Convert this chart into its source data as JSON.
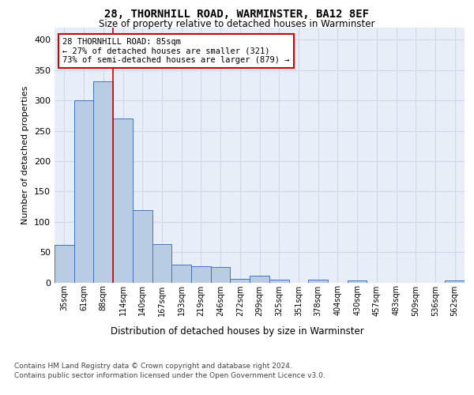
{
  "title1": "28, THORNHILL ROAD, WARMINSTER, BA12 8EF",
  "title2": "Size of property relative to detached houses in Warminster",
  "xlabel": "Distribution of detached houses by size in Warminster",
  "ylabel": "Number of detached properties",
  "categories": [
    "35sqm",
    "61sqm",
    "88sqm",
    "114sqm",
    "140sqm",
    "167sqm",
    "193sqm",
    "219sqm",
    "246sqm",
    "272sqm",
    "299sqm",
    "325sqm",
    "351sqm",
    "378sqm",
    "404sqm",
    "430sqm",
    "457sqm",
    "483sqm",
    "509sqm",
    "536sqm",
    "562sqm"
  ],
  "values": [
    62,
    300,
    332,
    270,
    119,
    63,
    29,
    27,
    25,
    6,
    11,
    5,
    0,
    4,
    0,
    3,
    0,
    0,
    0,
    0,
    3
  ],
  "bar_color": "#b8cce4",
  "bar_edge_color": "#4472c4",
  "bar_width": 1.0,
  "vline_x_idx": 2,
  "vline_color": "#cc0000",
  "annotation_text": "28 THORNHILL ROAD: 85sqm\n← 27% of detached houses are smaller (321)\n73% of semi-detached houses are larger (879) →",
  "annotation_box_color": "white",
  "annotation_box_edge": "#cc0000",
  "grid_color": "#d0d8e8",
  "background_color": "#e8eef8",
  "footer1": "Contains HM Land Registry data © Crown copyright and database right 2024.",
  "footer2": "Contains public sector information licensed under the Open Government Licence v3.0.",
  "ylim": [
    0,
    420
  ],
  "yticks": [
    0,
    50,
    100,
    150,
    200,
    250,
    300,
    350,
    400
  ]
}
